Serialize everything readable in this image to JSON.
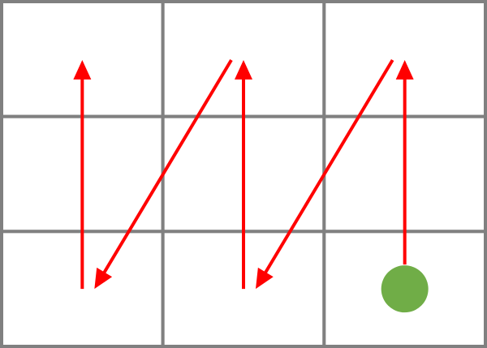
{
  "grid": {
    "rows": 3,
    "cols": 3,
    "line_color": "#808080"
  },
  "path": {
    "color": "#ff0000",
    "start_marker_color": "#70ad47",
    "start_cell": {
      "row": 2,
      "col": 2
    },
    "moves": [
      {
        "from": {
          "row": 2,
          "col": 2
        },
        "to": {
          "row": 0,
          "col": 2
        }
      },
      {
        "from": {
          "row": 0,
          "col": 2
        },
        "to": {
          "row": 2,
          "col": 1
        }
      },
      {
        "from": {
          "row": 2,
          "col": 1
        },
        "to": {
          "row": 0,
          "col": 1
        }
      },
      {
        "from": {
          "row": 0,
          "col": 1
        },
        "to": {
          "row": 2,
          "col": 0
        }
      },
      {
        "from": {
          "row": 2,
          "col": 0
        },
        "to": {
          "row": 0,
          "col": 0
        }
      }
    ]
  }
}
